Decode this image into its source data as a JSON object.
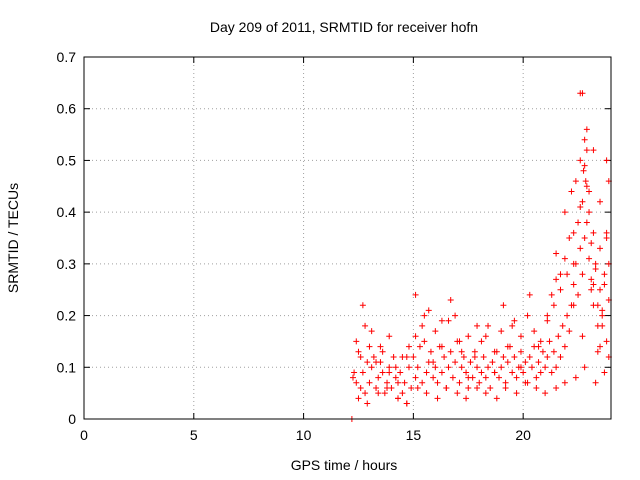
{
  "chart_data": {
    "type": "scatter",
    "title": "Day 209 of 2011, SRMTID for receiver hofn",
    "xlabel": "GPS time / hours",
    "ylabel": "SRMTID / TECUs",
    "xlim": [
      0,
      24
    ],
    "ylim": [
      0,
      0.7
    ],
    "xticks": [
      "0",
      "5",
      "10",
      "15",
      "20"
    ],
    "yticks": [
      "0",
      "0.1",
      "0.2",
      "0.3",
      "0.4",
      "0.5",
      "0.6",
      "0.7"
    ],
    "grid": true,
    "marker": "+",
    "color": "#ff0000",
    "series": [
      {
        "x": [
          12.2,
          12.25,
          12.4,
          12.5,
          12.6,
          12.7,
          12.8,
          12.9,
          13.0,
          13.1,
          13.2,
          13.3,
          13.4,
          13.5,
          13.6,
          13.7,
          13.8,
          13.9,
          14.0,
          14.1,
          14.2,
          14.3,
          14.4,
          14.5,
          14.6,
          14.7,
          14.8,
          14.9,
          15.0,
          15.1,
          15.2,
          15.3,
          15.4,
          15.5,
          15.6,
          15.7,
          15.8,
          15.9,
          16.0,
          16.1,
          16.2,
          16.3,
          16.4,
          16.5,
          16.6,
          16.7,
          16.8,
          16.9,
          17.0,
          17.1,
          17.2,
          17.3,
          17.4,
          17.5,
          17.6,
          17.7,
          17.8,
          17.9,
          18.0,
          18.1,
          18.2,
          18.3,
          18.4,
          18.5,
          18.6,
          18.7,
          18.8,
          18.9,
          19.0,
          19.1,
          19.2,
          19.3,
          19.4,
          19.5,
          19.6,
          19.7,
          19.8,
          19.9,
          20.0,
          20.1,
          20.2,
          20.3,
          20.4,
          20.5,
          20.6,
          20.7,
          20.8,
          20.9,
          21.0,
          21.1,
          21.2,
          21.3,
          21.4,
          21.5,
          21.6,
          21.7,
          21.8,
          21.9,
          22.0,
          22.1,
          22.2,
          22.3,
          22.4,
          22.5,
          22.6,
          22.7,
          22.8,
          22.9,
          23.0,
          23.1,
          23.2,
          23.3,
          23.4,
          23.5,
          23.6,
          23.7,
          23.8,
          23.9,
          12.4,
          12.6,
          12.8,
          13.0,
          13.3,
          13.6,
          13.9,
          14.2,
          14.5,
          14.8,
          15.1,
          15.4,
          15.7,
          16.0,
          16.3,
          16.6,
          16.9,
          17.2,
          17.5,
          17.8,
          18.1,
          18.4,
          18.7,
          19.0,
          19.3,
          19.6,
          19.9,
          20.2,
          20.5,
          20.8,
          21.1,
          21.4,
          21.7,
          22.0,
          22.3,
          22.6,
          22.9,
          23.2,
          23.5,
          23.8,
          12.5,
          12.9,
          13.4,
          13.8,
          14.3,
          14.7,
          15.2,
          15.6,
          16.1,
          16.5,
          17.0,
          17.4,
          17.9,
          18.3,
          18.8,
          19.2,
          19.7,
          20.1,
          20.6,
          21.0,
          21.5,
          21.9,
          22.4,
          22.8,
          23.3,
          23.7,
          12.3,
          12.7,
          13.1,
          13.5,
          13.9,
          14.3,
          14.7,
          15.1,
          15.5,
          15.9,
          16.3,
          16.7,
          17.1,
          17.5,
          17.9,
          18.3,
          18.7,
          19.1,
          19.5,
          19.9,
          20.3,
          20.7,
          21.1,
          21.5,
          21.9,
          22.3,
          22.7,
          23.1,
          23.5,
          23.9,
          21.3,
          21.5,
          21.7,
          21.9,
          22.1,
          22.2,
          22.3,
          22.4,
          22.5,
          22.6,
          22.7,
          22.75,
          22.8,
          22.85,
          22.9,
          23.0,
          23.1,
          23.2,
          23.3,
          23.4,
          23.5,
          23.6,
          23.7,
          23.8,
          23.9,
          22.6,
          22.7,
          22.8,
          22.9,
          23.0,
          23.2,
          23.4,
          23.6,
          23.8,
          23.9
        ],
        "y": [
          0.0,
          0.08,
          0.07,
          0.13,
          0.06,
          0.09,
          0.05,
          0.11,
          0.07,
          0.1,
          0.12,
          0.06,
          0.08,
          0.14,
          0.09,
          0.05,
          0.07,
          0.1,
          0.06,
          0.12,
          0.08,
          0.04,
          0.09,
          0.05,
          0.07,
          0.03,
          0.1,
          0.06,
          0.12,
          0.08,
          0.1,
          0.14,
          0.07,
          0.15,
          0.09,
          0.11,
          0.13,
          0.08,
          0.1,
          0.07,
          0.14,
          0.09,
          0.12,
          0.06,
          0.1,
          0.13,
          0.08,
          0.11,
          0.15,
          0.07,
          0.1,
          0.12,
          0.09,
          0.06,
          0.11,
          0.08,
          0.13,
          0.1,
          0.07,
          0.09,
          0.12,
          0.08,
          0.1,
          0.06,
          0.11,
          0.09,
          0.13,
          0.08,
          0.1,
          0.12,
          0.07,
          0.11,
          0.14,
          0.09,
          0.12,
          0.08,
          0.1,
          0.13,
          0.09,
          0.11,
          0.07,
          0.12,
          0.1,
          0.14,
          0.08,
          0.11,
          0.09,
          0.13,
          0.1,
          0.12,
          0.15,
          0.09,
          0.13,
          0.1,
          0.16,
          0.12,
          0.18,
          0.14,
          0.2,
          0.17,
          0.22,
          0.26,
          0.3,
          0.24,
          0.33,
          0.28,
          0.35,
          0.38,
          0.31,
          0.27,
          0.22,
          0.3,
          0.18,
          0.25,
          0.2,
          0.28,
          0.15,
          0.23,
          0.15,
          0.12,
          0.18,
          0.14,
          0.11,
          0.13,
          0.16,
          0.1,
          0.12,
          0.14,
          0.16,
          0.18,
          0.21,
          0.17,
          0.14,
          0.19,
          0.2,
          0.13,
          0.16,
          0.12,
          0.15,
          0.18,
          0.13,
          0.17,
          0.14,
          0.19,
          0.16,
          0.2,
          0.17,
          0.15,
          0.19,
          0.22,
          0.25,
          0.28,
          0.36,
          0.41,
          0.45,
          0.52,
          0.42,
          0.36,
          0.04,
          0.03,
          0.05,
          0.06,
          0.04,
          0.03,
          0.06,
          0.05,
          0.04,
          0.06,
          0.05,
          0.04,
          0.06,
          0.05,
          0.04,
          0.06,
          0.05,
          0.07,
          0.06,
          0.05,
          0.06,
          0.07,
          0.08,
          0.1,
          0.07,
          0.09,
          0.09,
          0.22,
          0.17,
          0.11,
          0.09,
          0.07,
          0.12,
          0.24,
          0.2,
          0.11,
          0.19,
          0.23,
          0.15,
          0.08,
          0.18,
          0.16,
          0.09,
          0.22,
          0.18,
          0.1,
          0.24,
          0.14,
          0.2,
          0.27,
          0.31,
          0.22,
          0.16,
          0.25,
          0.14,
          0.3,
          0.24,
          0.32,
          0.28,
          0.4,
          0.35,
          0.44,
          0.3,
          0.46,
          0.38,
          0.5,
          0.42,
          0.48,
          0.54,
          0.46,
          0.56,
          0.4,
          0.34,
          0.26,
          0.29,
          0.22,
          0.33,
          0.18,
          0.26,
          0.35,
          0.46,
          0.63,
          0.63,
          0.49,
          0.52,
          0.44,
          0.36,
          0.13,
          0.21,
          0.5,
          0.12
        ]
      }
    ]
  }
}
